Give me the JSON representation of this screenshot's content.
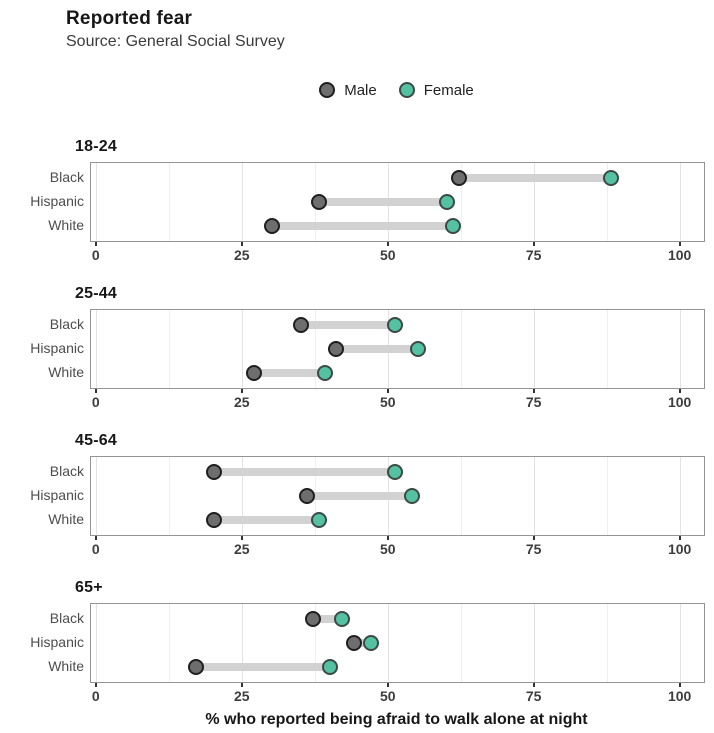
{
  "header": {
    "title": "Reported fear",
    "subtitle": "Source: General Social Survey"
  },
  "legend": {
    "items": [
      {
        "label": "Male",
        "fill": "#6e6e6e",
        "stroke": "#1f1f1f"
      },
      {
        "label": "Female",
        "fill": "#55c1a3",
        "stroke": "#3c4a45"
      }
    ]
  },
  "style": {
    "connector": "#d2d2d2",
    "grid_major": "#e3e3e3",
    "grid_minor": "#efefef",
    "panel_border": "#949494",
    "tick_color": "#333333"
  },
  "chart_data": {
    "type": "dumbbell",
    "title": "Reported fear",
    "subtitle": "Source: General Social Survey",
    "xlabel": "% who reported being afraid to walk alone at night",
    "series_names": [
      "Male",
      "Female"
    ],
    "x_ticks": [
      0,
      25,
      50,
      75,
      100
    ],
    "x_minor_ticks": [
      12.5,
      37.5,
      62.5,
      87.5
    ],
    "xlim": [
      0,
      100
    ],
    "x_domain": [
      -1,
      104
    ],
    "grid": "vertical",
    "legend_position": "top-center",
    "facets": [
      {
        "label": "18-24",
        "rows": [
          {
            "category": "Black",
            "male": 62,
            "female": 88
          },
          {
            "category": "Hispanic",
            "male": 38,
            "female": 60
          },
          {
            "category": "White",
            "male": 30,
            "female": 61
          }
        ]
      },
      {
        "label": "25-44",
        "rows": [
          {
            "category": "Black",
            "male": 35,
            "female": 51
          },
          {
            "category": "Hispanic",
            "male": 41,
            "female": 55
          },
          {
            "category": "White",
            "male": 27,
            "female": 39
          }
        ]
      },
      {
        "label": "45-64",
        "rows": [
          {
            "category": "Black",
            "male": 20,
            "female": 51
          },
          {
            "category": "Hispanic",
            "male": 36,
            "female": 54
          },
          {
            "category": "White",
            "male": 20,
            "female": 38
          }
        ]
      },
      {
        "label": "65+",
        "rows": [
          {
            "category": "Black",
            "male": 37,
            "female": 42
          },
          {
            "category": "Hispanic",
            "male": 44,
            "female": 47
          },
          {
            "category": "White",
            "male": 17,
            "female": 40
          }
        ]
      }
    ]
  }
}
